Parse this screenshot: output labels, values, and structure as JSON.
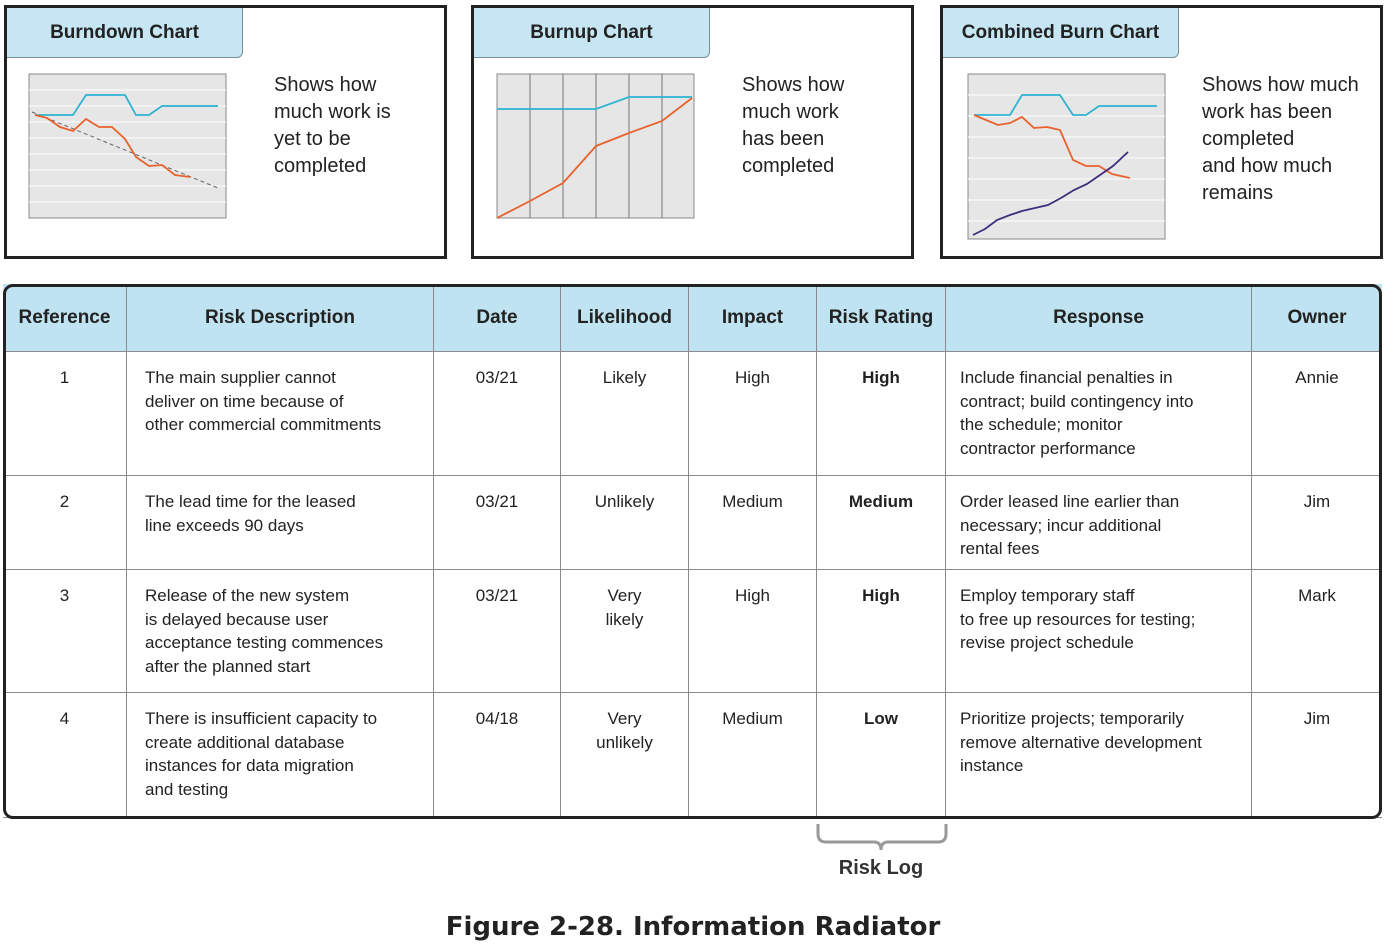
{
  "panels": [
    {
      "title": "Burndown Chart",
      "description": [
        "Shows how",
        "much work is",
        "yet to be",
        "completed"
      ]
    },
    {
      "title": "Burnup Chart",
      "description": [
        "Shows how",
        "much work",
        "has been",
        "completed"
      ]
    },
    {
      "title": "Combined Burn Chart",
      "description": [
        "Shows how much",
        "work has been",
        "completed",
        "and how much",
        "remains"
      ]
    }
  ],
  "table": {
    "headers": [
      "Reference",
      "Risk Description",
      "Date",
      "Likelihood",
      "Impact",
      "Risk Rating",
      "Response",
      "Owner"
    ],
    "rows": [
      [
        "1",
        [
          "The main supplier cannot",
          "deliver on time because of",
          "other commercial commitments"
        ],
        "03/21",
        "Likely",
        "High",
        "High",
        [
          "Include financial penalties in",
          "contract; build contingency into",
          "the schedule; monitor",
          "contractor performance"
        ],
        "Annie"
      ],
      [
        "2",
        [
          "The lead time for the leased",
          "line exceeds 90 days"
        ],
        "03/21",
        "Unlikely",
        "Medium",
        "Medium",
        [
          "Order leased line earlier than",
          "necessary; incur additional",
          "rental fees"
        ],
        "Jim"
      ],
      [
        "3",
        [
          "Release of the new system",
          "is delayed because user",
          "acceptance testing commences",
          "after the planned start"
        ],
        "03/21",
        [
          "Very",
          "likely"
        ],
        "High",
        "High",
        [
          "Employ temporary staff",
          "to free up resources for testing;",
          "revise project schedule"
        ],
        "Mark"
      ],
      [
        "4",
        [
          "There is insufficient capacity to",
          "create additional database",
          "instances for data migration",
          "and testing"
        ],
        "04/18",
        [
          "Very",
          "unlikely"
        ],
        "Medium",
        "Low",
        [
          "Prioritize projects; temporarily",
          "remove alternative development",
          "instance"
        ],
        "Jim"
      ]
    ]
  },
  "annotation": "Risk Log",
  "caption": "Figure 2-28. Information Radiator"
}
